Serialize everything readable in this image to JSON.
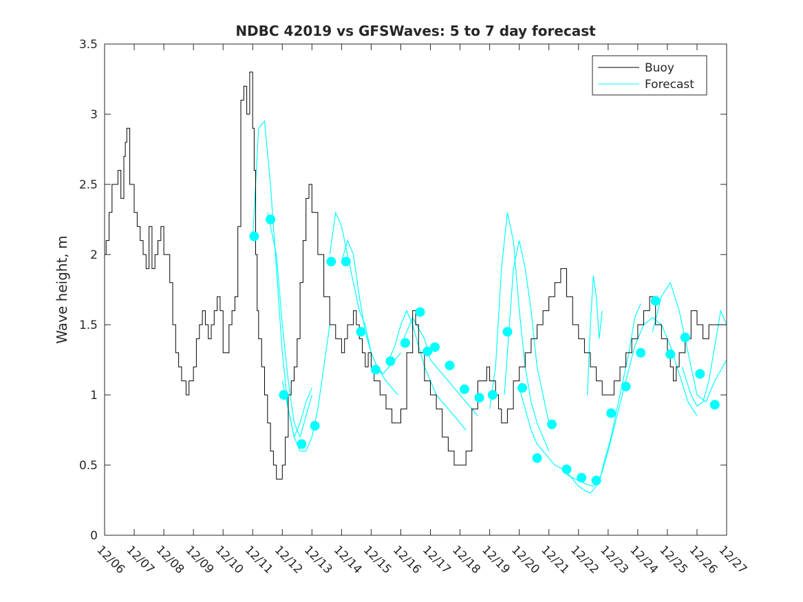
{
  "chart_data": {
    "type": "line",
    "title": "NDBC 42019 vs GFSWaves: 5 to 7 day forecast",
    "xlabel": "",
    "ylabel": "Wave height, m",
    "xlim": [
      0,
      21
    ],
    "ylim": [
      0,
      3.5
    ],
    "x_tick_values": [
      0,
      1,
      2,
      3,
      4,
      5,
      6,
      7,
      8,
      9,
      10,
      11,
      12,
      13,
      14,
      15,
      16,
      17,
      18,
      19,
      20,
      21
    ],
    "x_tick_labels": [
      "12/06",
      "12/07",
      "12/08",
      "12/09",
      "12/10",
      "12/11",
      "12/12",
      "12/13",
      "12/14",
      "12/15",
      "12/16",
      "12/17",
      "12/18",
      "12/19",
      "12/20",
      "12/21",
      "12/22",
      "12/23",
      "12/24",
      "12/25",
      "12/26",
      "12/27"
    ],
    "y_tick_values": [
      0,
      0.5,
      1,
      1.5,
      2,
      2.5,
      3,
      3.5
    ],
    "y_tick_labels": [
      "0",
      "0.5",
      "1",
      "1.5",
      "2",
      "2.5",
      "3",
      "3.5"
    ],
    "legend": {
      "position": "top-right",
      "entries": [
        "Buoy",
        "Forecast"
      ]
    },
    "colors": {
      "buoy": "#000000",
      "forecast": "#00ffff",
      "axis": "#262626"
    },
    "series": [
      {
        "name": "Buoy",
        "x": [
          0,
          0.05,
          0.15,
          0.25,
          0.35,
          0.45,
          0.55,
          0.65,
          0.7,
          0.75,
          0.85,
          1.0,
          1.1,
          1.2,
          1.3,
          1.4,
          1.5,
          1.6,
          1.7,
          1.8,
          1.9,
          2.0,
          2.1,
          2.2,
          2.3,
          2.4,
          2.5,
          2.6,
          2.75,
          2.85,
          3.0,
          3.1,
          3.2,
          3.3,
          3.4,
          3.5,
          3.6,
          3.7,
          3.8,
          3.9,
          4.0,
          4.1,
          4.2,
          4.3,
          4.4,
          4.5,
          4.6,
          4.7,
          4.8,
          4.9,
          5.0,
          5.05,
          5.1,
          5.15,
          5.2,
          5.3,
          5.4,
          5.5,
          5.6,
          5.7,
          5.8,
          5.9,
          6.0,
          6.1,
          6.2,
          6.3,
          6.4,
          6.5,
          6.6,
          6.7,
          6.8,
          6.9,
          7.0,
          7.2,
          7.4,
          7.6,
          7.8,
          8.0,
          8.1,
          8.2,
          8.3,
          8.4,
          8.5,
          8.6,
          8.7,
          8.8,
          8.9,
          9.0,
          9.1,
          9.3,
          9.5,
          9.7,
          9.9,
          10.0,
          10.2,
          10.4,
          10.5,
          10.6,
          10.8,
          11.0,
          11.2,
          11.4,
          11.6,
          11.8,
          12.0,
          12.2,
          12.4,
          12.6,
          12.8,
          12.9,
          13.0,
          13.1,
          13.2,
          13.3,
          13.4,
          13.6,
          13.8,
          14.0,
          14.2,
          14.4,
          14.6,
          14.8,
          15.0,
          15.2,
          15.4,
          15.6,
          15.8,
          16.0,
          16.2,
          16.4,
          16.6,
          16.8,
          17.0,
          17.2,
          17.4,
          17.6,
          17.8,
          18.0,
          18.2,
          18.4,
          18.6,
          18.8,
          19.0,
          19.1,
          19.2,
          19.3,
          19.4,
          19.6,
          19.8,
          20.0,
          20.2,
          20.4,
          20.6,
          20.8,
          21.0
        ],
        "y": [
          2.0,
          2.1,
          2.3,
          2.5,
          2.5,
          2.6,
          2.4,
          2.7,
          2.8,
          2.9,
          2.5,
          2.3,
          2.2,
          2.1,
          2.0,
          1.9,
          2.2,
          1.9,
          2.0,
          2.1,
          2.2,
          2.0,
          2.0,
          1.8,
          1.5,
          1.3,
          1.2,
          1.1,
          1.0,
          1.1,
          1.2,
          1.4,
          1.5,
          1.6,
          1.5,
          1.4,
          1.5,
          1.6,
          1.7,
          1.6,
          1.3,
          1.3,
          1.5,
          1.6,
          1.7,
          2.2,
          3.1,
          3.2,
          3.0,
          3.3,
          2.9,
          2.6,
          2.0,
          1.6,
          1.4,
          1.2,
          1.0,
          0.8,
          0.6,
          0.5,
          0.4,
          0.4,
          0.5,
          0.7,
          1.0,
          1.1,
          1.2,
          1.4,
          1.8,
          2.1,
          2.4,
          2.5,
          2.3,
          2.0,
          1.7,
          1.5,
          1.4,
          1.3,
          1.4,
          1.5,
          1.5,
          1.6,
          1.5,
          1.4,
          1.3,
          1.2,
          1.3,
          1.2,
          1.1,
          1.0,
          0.9,
          0.8,
          0.8,
          0.9,
          1.3,
          1.6,
          1.5,
          1.3,
          1.1,
          1.0,
          0.9,
          0.7,
          0.6,
          0.5,
          0.5,
          0.6,
          0.9,
          1.1,
          1.1,
          1.2,
          1.1,
          1.1,
          1.0,
          0.9,
          0.8,
          0.9,
          1.1,
          1.2,
          1.3,
          1.4,
          1.5,
          1.6,
          1.7,
          1.8,
          1.9,
          1.7,
          1.5,
          1.4,
          1.3,
          1.2,
          1.1,
          1.0,
          1.0,
          1.1,
          1.2,
          1.3,
          1.4,
          1.5,
          1.6,
          1.7,
          1.5,
          1.4,
          1.3,
          1.2,
          1.1,
          1.2,
          1.3,
          1.4,
          1.6,
          1.5,
          1.4,
          1.5,
          1.5,
          1.5,
          1.5
        ]
      },
      {
        "name": "Forecast",
        "segments": [
          {
            "x": [
              5.0,
              5.2,
              5.4,
              5.6,
              5.8,
              6.0,
              6.2,
              6.4,
              6.6,
              6.8,
              7.0
            ],
            "y": [
              2.1,
              2.9,
              2.95,
              2.5,
              1.9,
              1.3,
              0.9,
              0.7,
              0.8,
              0.95,
              1.05
            ]
          },
          {
            "x": [
              5.5,
              5.8,
              6.0,
              6.2,
              6.4,
              6.6,
              6.8,
              7.0
            ],
            "y": [
              2.3,
              2.0,
              1.5,
              1.1,
              0.8,
              0.7,
              0.85,
              1.0
            ]
          },
          {
            "x": [
              6.0,
              6.2,
              6.4,
              6.6,
              6.8,
              7.0,
              7.2,
              7.4,
              7.6
            ],
            "y": [
              1.1,
              0.9,
              0.7,
              0.6,
              0.6,
              0.7,
              0.9,
              1.2,
              1.5
            ]
          },
          {
            "x": [
              7.6,
              7.8,
              8.0,
              8.2,
              8.4,
              8.6,
              8.8,
              9.0,
              9.2,
              9.5,
              9.9
            ],
            "y": [
              2.0,
              2.3,
              2.2,
              2.0,
              1.8,
              1.6,
              1.5,
              1.3,
              1.2,
              1.1,
              1.0
            ]
          },
          {
            "x": [
              8.0,
              8.2,
              8.4,
              8.6,
              8.8,
              9.0,
              9.2,
              9.4,
              9.6,
              10.0
            ],
            "y": [
              1.95,
              2.1,
              2.0,
              1.7,
              1.45,
              1.3,
              1.2,
              1.15,
              1.2,
              1.3
            ]
          },
          {
            "x": [
              9.6,
              9.8,
              10.0,
              10.2,
              10.4,
              10.6,
              10.8,
              11.0,
              11.2,
              11.4,
              11.6,
              11.8,
              12.0,
              12.2
            ],
            "y": [
              1.25,
              1.35,
              1.5,
              1.6,
              1.5,
              1.35,
              1.2,
              1.1,
              1.0,
              0.95,
              0.9,
              0.85,
              0.8,
              0.75
            ]
          },
          {
            "x": [
              10.0,
              10.4,
              10.8,
              11.0,
              11.2,
              11.4,
              11.6,
              11.8,
              12.0,
              12.2,
              12.4,
              12.6
            ],
            "y": [
              1.35,
              1.55,
              1.4,
              1.25,
              1.2,
              1.15,
              1.1,
              1.05,
              1.0,
              0.95,
              0.9,
              0.85
            ]
          },
          {
            "x": [
              13.0,
              13.2,
              13.4,
              13.6,
              13.8,
              14.0,
              14.2,
              14.4,
              14.6,
              14.8,
              15.0
            ],
            "y": [
              0.9,
              1.2,
              1.9,
              2.3,
              2.1,
              1.6,
              1.2,
              0.95,
              0.8,
              0.7,
              0.6
            ]
          },
          {
            "x": [
              13.5,
              13.8,
              14.0,
              14.2,
              14.4,
              14.6,
              14.8,
              15.0
            ],
            "y": [
              1.0,
              1.9,
              2.1,
              1.9,
              1.6,
              1.2,
              1.0,
              0.8
            ]
          },
          {
            "x": [
              14.0,
              14.2,
              14.4,
              14.6,
              14.8,
              15.0,
              15.2,
              15.4,
              15.6,
              15.8,
              16.0,
              16.2,
              16.4,
              16.6,
              16.8,
              17.0
            ],
            "y": [
              1.05,
              0.9,
              0.75,
              0.65,
              0.6,
              0.55,
              0.5,
              0.48,
              0.45,
              0.4,
              0.35,
              0.32,
              0.3,
              0.35,
              0.45,
              0.6
            ]
          },
          {
            "x": [
              15.5,
              15.7,
              15.9,
              16.1,
              16.3,
              16.5,
              16.7,
              16.9,
              17.1,
              17.3,
              17.5,
              17.7,
              17.9,
              18.1
            ],
            "y": [
              0.45,
              0.42,
              0.4,
              0.38,
              0.36,
              0.35,
              0.38,
              0.55,
              0.7,
              0.9,
              1.1,
              1.3,
              1.55,
              1.65
            ]
          },
          {
            "x": [
              17.0,
              17.3,
              17.6,
              17.9,
              18.2,
              18.5,
              18.8,
              19.1,
              19.4,
              19.7,
              20.0
            ],
            "y": [
              0.6,
              0.85,
              1.1,
              1.35,
              1.5,
              1.55,
              1.5,
              1.35,
              1.15,
              0.95,
              0.85
            ]
          },
          {
            "x": [
              18.5,
              18.8,
              19.1,
              19.4,
              19.7,
              20.0,
              20.3,
              20.6,
              21.0
            ],
            "y": [
              1.45,
              1.7,
              1.8,
              1.6,
              1.3,
              1.0,
              0.95,
              1.1,
              1.25
            ]
          },
          {
            "x": [
              19.5,
              19.8,
              20.0,
              20.2,
              20.4,
              20.6,
              20.8,
              21.0
            ],
            "y": [
              1.2,
              1.0,
              0.92,
              0.95,
              1.1,
              1.35,
              1.6,
              1.5
            ]
          },
          {
            "x": [
              16.3,
              16.4,
              16.5,
              16.6,
              16.7,
              16.8
            ],
            "y": [
              1.0,
              1.5,
              1.85,
              1.7,
              1.4,
              1.6
            ]
          }
        ]
      },
      {
        "name": "Forecast markers",
        "x": [
          5.05,
          5.6,
          6.05,
          6.65,
          7.1,
          7.65,
          8.15,
          8.65,
          9.15,
          9.65,
          10.15,
          10.65,
          10.9,
          11.15,
          11.65,
          12.15,
          12.65,
          13.1,
          13.6,
          14.1,
          14.6,
          15.1,
          15.6,
          16.1,
          16.6,
          17.1,
          17.6,
          18.1,
          18.6,
          19.1,
          19.6,
          20.1,
          20.6
        ],
        "y": [
          2.13,
          2.25,
          1.0,
          0.65,
          0.78,
          1.95,
          1.95,
          1.45,
          1.18,
          1.24,
          1.37,
          1.59,
          1.31,
          1.34,
          1.21,
          1.04,
          0.98,
          1.0,
          1.45,
          1.05,
          0.55,
          0.79,
          0.47,
          0.41,
          0.39,
          0.87,
          1.06,
          1.3,
          1.67,
          1.29,
          1.41,
          1.15,
          0.93
        ]
      }
    ]
  }
}
